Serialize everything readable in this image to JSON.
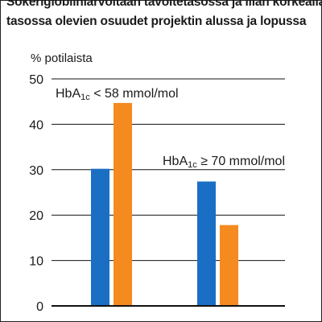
{
  "title": {
    "line1": "Sokeriglobiiniarvoltaan tavoitetasossa ja liian korkealla",
    "line2": "tasossa olevien osuudet projektin alussa ja lopussa"
  },
  "colors": {
    "start": "#1a6fc4",
    "end": "#f58a1f",
    "gridline": "#111111",
    "axis": "#111111"
  },
  "chart_data": {
    "type": "bar",
    "title": "",
    "ylabel": "% potilaista",
    "xlabel": "",
    "ylim": [
      0,
      50
    ],
    "yticks": [
      "0",
      "10",
      "20",
      "30",
      "40",
      "50"
    ],
    "grid": true,
    "categories": [
      "HbA1c < 58 mmol/mol",
      "HbA1c ≥ 70 mmol/mol"
    ],
    "series": [
      {
        "values": [
          30.2,
          27.4
        ]
      },
      {
        "values": [
          44.7,
          17.8
        ]
      }
    ],
    "annotations": [
      {
        "main": "HbA",
        "sub": "1c",
        "rest": " < 58 mmol/mol"
      },
      {
        "main": "HbA",
        "sub": "1c",
        "rest": " ≥ 70 mmol/mol"
      }
    ]
  }
}
